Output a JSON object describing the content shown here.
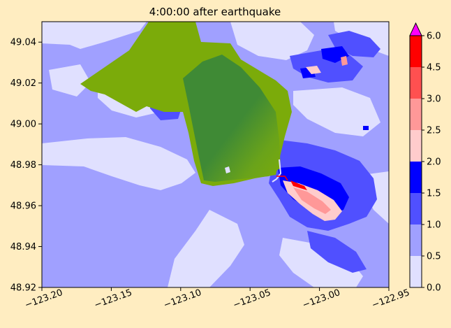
{
  "chart_data": {
    "type": "heatmap",
    "title": "4:00:00 after earthquake",
    "xlabel": "",
    "ylabel": "",
    "xlim": [
      -123.2,
      -122.95
    ],
    "ylim": [
      48.92,
      49.05
    ],
    "x_ticks": [
      -123.2,
      -123.15,
      -123.1,
      -123.05,
      -123.0,
      -122.95
    ],
    "x_tick_labels": [
      "−123.20",
      "−123.15",
      "−123.10",
      "−123.05",
      "−123.00",
      "−122.95"
    ],
    "y_ticks": [
      48.92,
      48.94,
      48.96,
      48.98,
      49.0,
      49.02,
      49.04
    ],
    "y_tick_labels": [
      "48.92",
      "48.94",
      "48.96",
      "48.98",
      "49.00",
      "49.02",
      "49.04"
    ],
    "grid": false,
    "colorbar": {
      "levels": [
        0.0,
        0.5,
        1.0,
        1.5,
        2.0,
        2.5,
        3.0,
        4.5,
        6.0
      ],
      "labels": [
        "0.0",
        "0.5",
        "1.0",
        "1.5",
        "2.0",
        "2.5",
        "3.0",
        "4.5",
        "6.0"
      ],
      "colors": [
        "#e0e0ff",
        "#a0a0ff",
        "#5050ff",
        "#0000ff",
        "#ffcccc",
        "#ff9898",
        "#ff5050",
        "#ff0000"
      ],
      "extend_color": "#ff00ff"
    },
    "colors": {
      "land_light": "#7bab0a",
      "land_dark": "#3f8a35"
    }
  }
}
